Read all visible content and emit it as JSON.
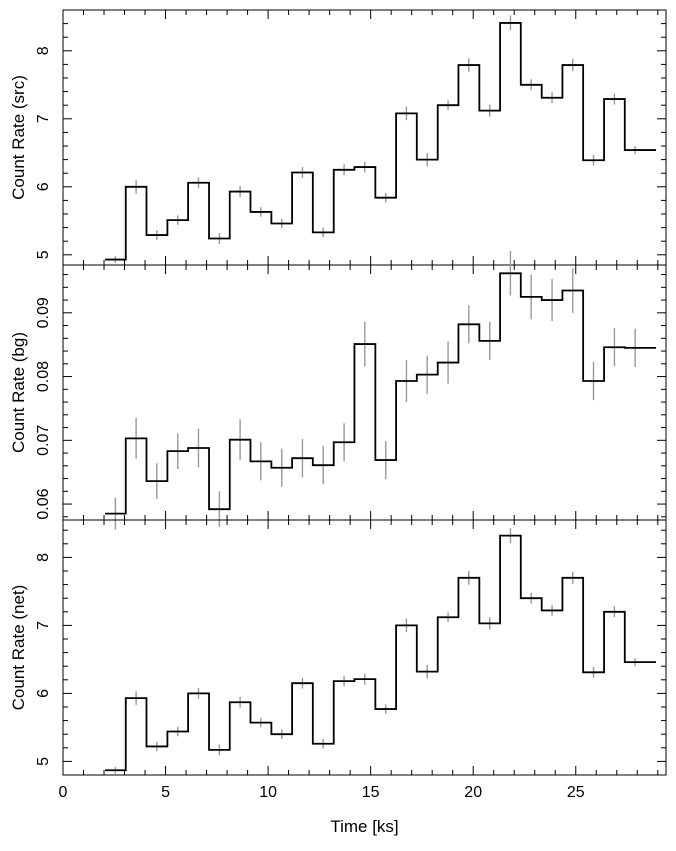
{
  "chart_data": [
    {
      "type": "line",
      "style": "step",
      "ylabel": "Count Rate (src)",
      "ylim": [
        4.85,
        8.6
      ],
      "yticks_major": [
        5,
        6,
        7,
        8
      ],
      "yticks_minor_step": 0.2,
      "series": [
        {
          "x": [
            2.05,
            3.06,
            4.07,
            5.09,
            6.1,
            7.12,
            8.13,
            9.14,
            10.16,
            11.17,
            12.18,
            13.2,
            14.21,
            15.23,
            16.24,
            17.25,
            18.27,
            19.28,
            20.3,
            21.31,
            22.32,
            23.34,
            24.35,
            25.36,
            26.38,
            27.39,
            28.41
          ],
          "y": [
            4.93,
            6.0,
            5.29,
            5.51,
            6.06,
            5.24,
            5.93,
            5.63,
            5.46,
            6.21,
            5.33,
            6.25,
            6.29,
            5.84,
            7.08,
            6.4,
            7.2,
            7.79,
            7.12,
            8.41,
            7.5,
            7.31,
            7.79,
            6.39,
            7.29,
            6.54,
            6.54
          ],
          "err": [
            0.05,
            0.1,
            0.07,
            0.07,
            0.08,
            0.08,
            0.08,
            0.07,
            0.07,
            0.08,
            0.07,
            0.08,
            0.08,
            0.07,
            0.1,
            0.1,
            0.07,
            0.1,
            0.09,
            0.11,
            0.08,
            0.08,
            0.09,
            0.08,
            0.08,
            0.06,
            0.06
          ]
        }
      ]
    },
    {
      "type": "line",
      "style": "step",
      "ylabel": "Count Rate (bg)",
      "ylim": [
        0.0575,
        0.0975
      ],
      "yticks_major": [
        0.06,
        0.07,
        0.08,
        0.09
      ],
      "yticks_minor_step": 0.002,
      "series": [
        {
          "x": [
            2.05,
            3.06,
            4.07,
            5.09,
            6.1,
            7.12,
            8.13,
            9.14,
            10.16,
            11.17,
            12.18,
            13.2,
            14.21,
            15.23,
            16.24,
            17.25,
            18.27,
            19.28,
            20.3,
            21.31,
            22.32,
            23.34,
            24.35,
            25.36,
            26.38,
            27.39,
            28.41
          ],
          "y": [
            0.0585,
            0.0703,
            0.0636,
            0.0683,
            0.0688,
            0.0592,
            0.0701,
            0.0667,
            0.0657,
            0.0672,
            0.0661,
            0.0697,
            0.0851,
            0.0669,
            0.0793,
            0.0803,
            0.0822,
            0.0882,
            0.0856,
            0.0962,
            0.0925,
            0.092,
            0.0935,
            0.0793,
            0.0846,
            0.0845,
            0.0845
          ],
          "err": [
            0.0025,
            0.0032,
            0.0028,
            0.0028,
            0.003,
            0.0028,
            0.0032,
            0.003,
            0.003,
            0.003,
            0.003,
            0.003,
            0.0035,
            0.003,
            0.0033,
            0.003,
            0.0033,
            0.003,
            0.003,
            0.0035,
            0.0035,
            0.0033,
            0.0035,
            0.003,
            0.003,
            0.003,
            0.003
          ]
        }
      ]
    },
    {
      "type": "line",
      "style": "step",
      "ylabel": "Count Rate (net)",
      "xlabel": "Time [ks]",
      "xlim": [
        0,
        29.4
      ],
      "xticks_major": [
        0,
        5,
        10,
        15,
        20,
        25
      ],
      "xticks_minor_step": 1,
      "ylim": [
        4.8,
        8.55
      ],
      "yticks_major": [
        5,
        6,
        7,
        8
      ],
      "yticks_minor_step": 0.2,
      "series": [
        {
          "x": [
            2.05,
            3.06,
            4.07,
            5.09,
            6.1,
            7.12,
            8.13,
            9.14,
            10.16,
            11.17,
            12.18,
            13.2,
            14.21,
            15.23,
            16.24,
            17.25,
            18.27,
            19.28,
            20.3,
            21.31,
            22.32,
            23.34,
            24.35,
            25.36,
            26.38,
            27.39,
            28.41
          ],
          "y": [
            4.87,
            5.93,
            5.22,
            5.44,
            6.0,
            5.17,
            5.87,
            5.57,
            5.4,
            6.15,
            5.26,
            6.18,
            6.21,
            5.77,
            7.0,
            6.32,
            7.12,
            7.7,
            7.03,
            8.32,
            7.4,
            7.22,
            7.7,
            6.31,
            7.2,
            6.46,
            6.46
          ],
          "err": [
            0.05,
            0.1,
            0.07,
            0.07,
            0.08,
            0.08,
            0.08,
            0.07,
            0.07,
            0.08,
            0.07,
            0.08,
            0.08,
            0.07,
            0.1,
            0.1,
            0.07,
            0.1,
            0.09,
            0.11,
            0.08,
            0.08,
            0.09,
            0.08,
            0.08,
            0.06,
            0.06
          ]
        }
      ]
    }
  ],
  "colors": {
    "step_line": "#000000",
    "error_bar": "#999999",
    "axis": "#000000"
  }
}
